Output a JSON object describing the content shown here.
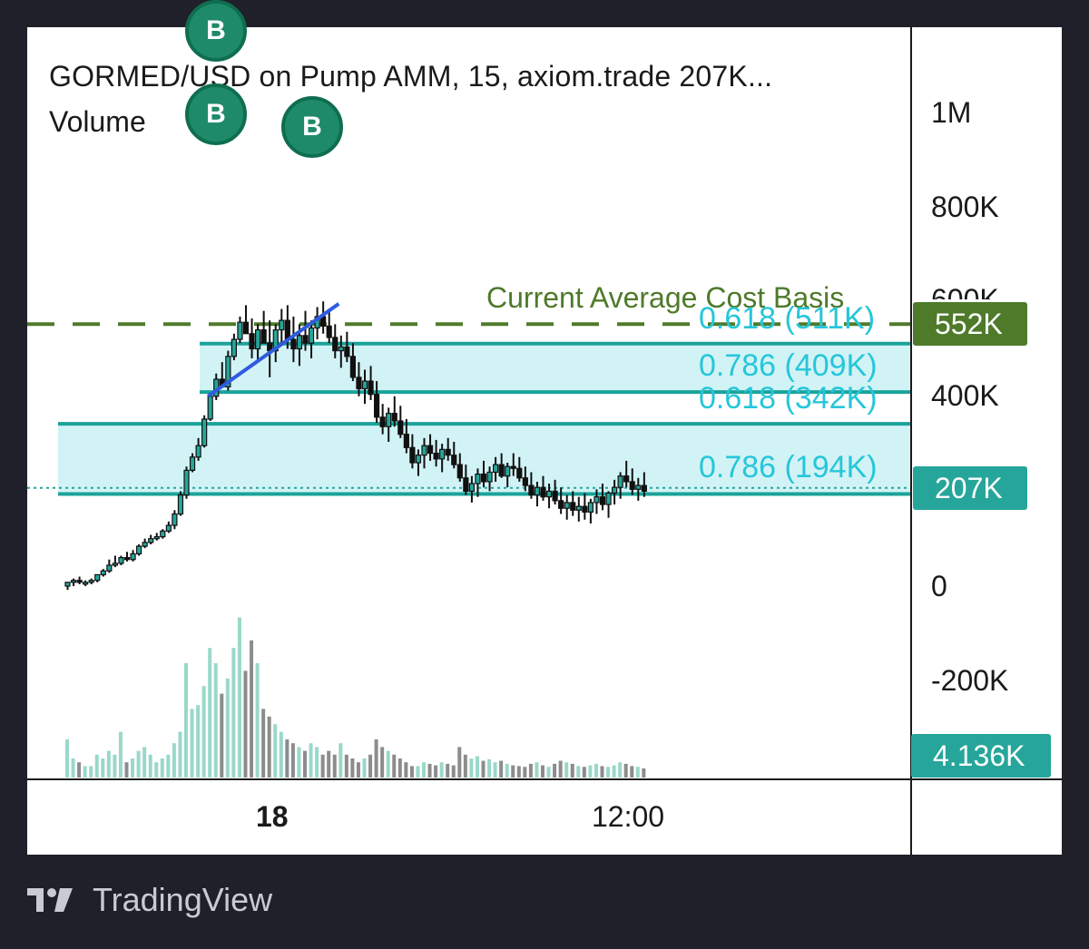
{
  "header": {
    "title": "GORMED/USD on Pump AMM, 15, axiom.trade  207K...",
    "volume_label": "Volume"
  },
  "y_axis": {
    "ticks": [
      "1M",
      "800K",
      "600K",
      "400K",
      "0",
      "-200K"
    ]
  },
  "x_axis": {
    "ticks": [
      "18",
      "12:00"
    ]
  },
  "badges": {
    "cost_basis": "552K",
    "price": "207K",
    "volume": "4.136K"
  },
  "annotations": {
    "cost_basis_label": "Current Average Cost Basis",
    "fib_upper_618": "0.618 (511K)",
    "fib_upper_786": "0.786 (409K)",
    "fib_lower_618": "0.618 (342K)",
    "fib_lower_786": "0.786 (194K)",
    "buy_marker": "B"
  },
  "footer": {
    "brand": "TradingView"
  },
  "colors": {
    "up": "#26a69a",
    "down": "#111111",
    "volume_up": "#9ad8c9",
    "volume_down": "#8c8c8c",
    "fib_line": "#1aa39a",
    "fib_fill": "#d2f3f6",
    "cost_basis": "#4e7a2a",
    "trendline": "#2f5be0",
    "price_line": "#26a69a"
  },
  "chart_data": {
    "type": "candlestick",
    "title": "GORMED/USD on Pump AMM, 15, axiom.trade",
    "interval": "15",
    "ylim": [
      -300000,
      1100000
    ],
    "cost_basis": 552000,
    "last_price": 207000,
    "last_volume": 4136,
    "fib_zones": [
      {
        "top": 511000,
        "bottom": 409000,
        "labels": [
          "0.618 (511K)",
          "0.786 (409K)"
        ]
      },
      {
        "top": 342000,
        "bottom": 194000,
        "labels": [
          "0.618 (342K)",
          "0.786 (194K)"
        ]
      }
    ],
    "trendline": {
      "from_index": 24,
      "from_value": 400000,
      "to_index": 46,
      "to_value": 595000
    },
    "candles": [
      [
        0,
        2,
        -2,
        2,
        50000
      ],
      [
        2,
        4,
        0,
        3,
        25000
      ],
      [
        3,
        5,
        1,
        2,
        20000
      ],
      [
        2,
        3,
        0,
        2,
        15000
      ],
      [
        2,
        4,
        1,
        3,
        15000
      ],
      [
        3,
        6,
        2,
        6,
        30000
      ],
      [
        6,
        9,
        5,
        8,
        25000
      ],
      [
        8,
        14,
        7,
        11,
        35000
      ],
      [
        11,
        16,
        10,
        12,
        30000
      ],
      [
        12,
        16,
        11,
        15,
        60000
      ],
      [
        15,
        18,
        13,
        14,
        20000
      ],
      [
        14,
        19,
        13,
        17,
        25000
      ],
      [
        17,
        22,
        16,
        21,
        35000
      ],
      [
        21,
        25,
        20,
        23,
        40000
      ],
      [
        23,
        27,
        22,
        25,
        30000
      ],
      [
        25,
        28,
        24,
        26,
        20000
      ],
      [
        26,
        30,
        25,
        29,
        25000
      ],
      [
        29,
        34,
        28,
        32,
        30000
      ],
      [
        32,
        40,
        30,
        38,
        45000
      ],
      [
        38,
        50,
        37,
        48,
        60000
      ],
      [
        48,
        63,
        46,
        61,
        150000
      ],
      [
        61,
        70,
        60,
        68,
        90000
      ],
      [
        68,
        78,
        66,
        74,
        95000
      ],
      [
        74,
        90,
        73,
        88,
        120000
      ],
      [
        88,
        102,
        87,
        100,
        170000
      ],
      [
        100,
        112,
        98,
        109,
        150000
      ],
      [
        109,
        118,
        106,
        105,
        110000
      ],
      [
        105,
        124,
        103,
        121,
        130000
      ],
      [
        121,
        133,
        119,
        130,
        170000
      ],
      [
        130,
        142,
        128,
        139,
        210000
      ],
      [
        139,
        148,
        136,
        133,
        140000
      ],
      [
        133,
        141,
        120,
        125,
        180000
      ],
      [
        125,
        138,
        118,
        135,
        150000
      ],
      [
        135,
        145,
        130,
        128,
        90000
      ],
      [
        128,
        140,
        110,
        124,
        80000
      ],
      [
        124,
        138,
        118,
        135,
        70000
      ],
      [
        135,
        146,
        128,
        140,
        60000
      ],
      [
        140,
        148,
        125,
        130,
        50000
      ],
      [
        130,
        142,
        118,
        125,
        45000
      ],
      [
        125,
        138,
        116,
        132,
        40000
      ],
      [
        132,
        145,
        124,
        128,
        35000
      ],
      [
        128,
        140,
        120,
        136,
        45000
      ],
      [
        136,
        147,
        130,
        142,
        40000
      ],
      [
        142,
        150,
        133,
        137,
        30000
      ],
      [
        137,
        146,
        128,
        131,
        35000
      ],
      [
        131,
        138,
        120,
        124,
        30000
      ],
      [
        124,
        132,
        115,
        126,
        45000
      ],
      [
        126,
        134,
        118,
        121,
        30000
      ],
      [
        121,
        128,
        108,
        110,
        25000
      ],
      [
        110,
        118,
        100,
        104,
        20000
      ],
      [
        104,
        114,
        96,
        108,
        25000
      ],
      [
        108,
        116,
        98,
        101,
        30000
      ],
      [
        101,
        108,
        86,
        89,
        50000
      ],
      [
        89,
        96,
        80,
        84,
        40000
      ],
      [
        84,
        94,
        76,
        91,
        35000
      ],
      [
        91,
        100,
        84,
        87,
        30000
      ],
      [
        87,
        95,
        78,
        80,
        25000
      ],
      [
        80,
        88,
        70,
        73,
        20000
      ],
      [
        73,
        80,
        62,
        65,
        15000
      ],
      [
        65,
        72,
        58,
        69,
        15000
      ],
      [
        69,
        78,
        62,
        74,
        20000
      ],
      [
        74,
        80,
        66,
        70,
        18000
      ],
      [
        70,
        77,
        63,
        67,
        16000
      ],
      [
        67,
        75,
        60,
        72,
        20000
      ],
      [
        72,
        78,
        66,
        69,
        18000
      ],
      [
        69,
        76,
        62,
        64,
        16000
      ],
      [
        64,
        70,
        55,
        57,
        40000
      ],
      [
        57,
        64,
        48,
        50,
        30000
      ],
      [
        50,
        58,
        44,
        54,
        25000
      ],
      [
        54,
        62,
        47,
        59,
        28000
      ],
      [
        59,
        66,
        52,
        55,
        22000
      ],
      [
        55,
        63,
        50,
        60,
        24000
      ],
      [
        60,
        68,
        55,
        64,
        20000
      ],
      [
        64,
        70,
        57,
        58,
        22000
      ],
      [
        58,
        65,
        52,
        63,
        18000
      ],
      [
        63,
        70,
        58,
        62,
        16000
      ],
      [
        62,
        68,
        55,
        57,
        15000
      ],
      [
        57,
        63,
        50,
        53,
        14000
      ],
      [
        53,
        60,
        46,
        48,
        18000
      ],
      [
        48,
        55,
        42,
        52,
        20000
      ],
      [
        52,
        58,
        45,
        47,
        16000
      ],
      [
        47,
        54,
        41,
        50,
        14000
      ],
      [
        50,
        56,
        43,
        45,
        18000
      ],
      [
        45,
        52,
        38,
        41,
        22000
      ],
      [
        41,
        48,
        35,
        44,
        20000
      ],
      [
        44,
        50,
        37,
        40,
        18000
      ],
      [
        40,
        47,
        34,
        42,
        15000
      ],
      [
        42,
        49,
        35,
        39,
        14000
      ],
      [
        39,
        46,
        33,
        44,
        16000
      ],
      [
        44,
        51,
        38,
        47,
        18000
      ],
      [
        47,
        54,
        40,
        43,
        15000
      ],
      [
        43,
        50,
        36,
        49,
        14000
      ],
      [
        49,
        56,
        43,
        52,
        16000
      ],
      [
        52,
        60,
        46,
        58,
        20000
      ],
      [
        58,
        66,
        52,
        55,
        18000
      ],
      [
        55,
        62,
        48,
        51,
        15000
      ],
      [
        51,
        57,
        45,
        53,
        14000
      ],
      [
        53,
        60,
        47,
        50,
        12000
      ]
    ]
  }
}
